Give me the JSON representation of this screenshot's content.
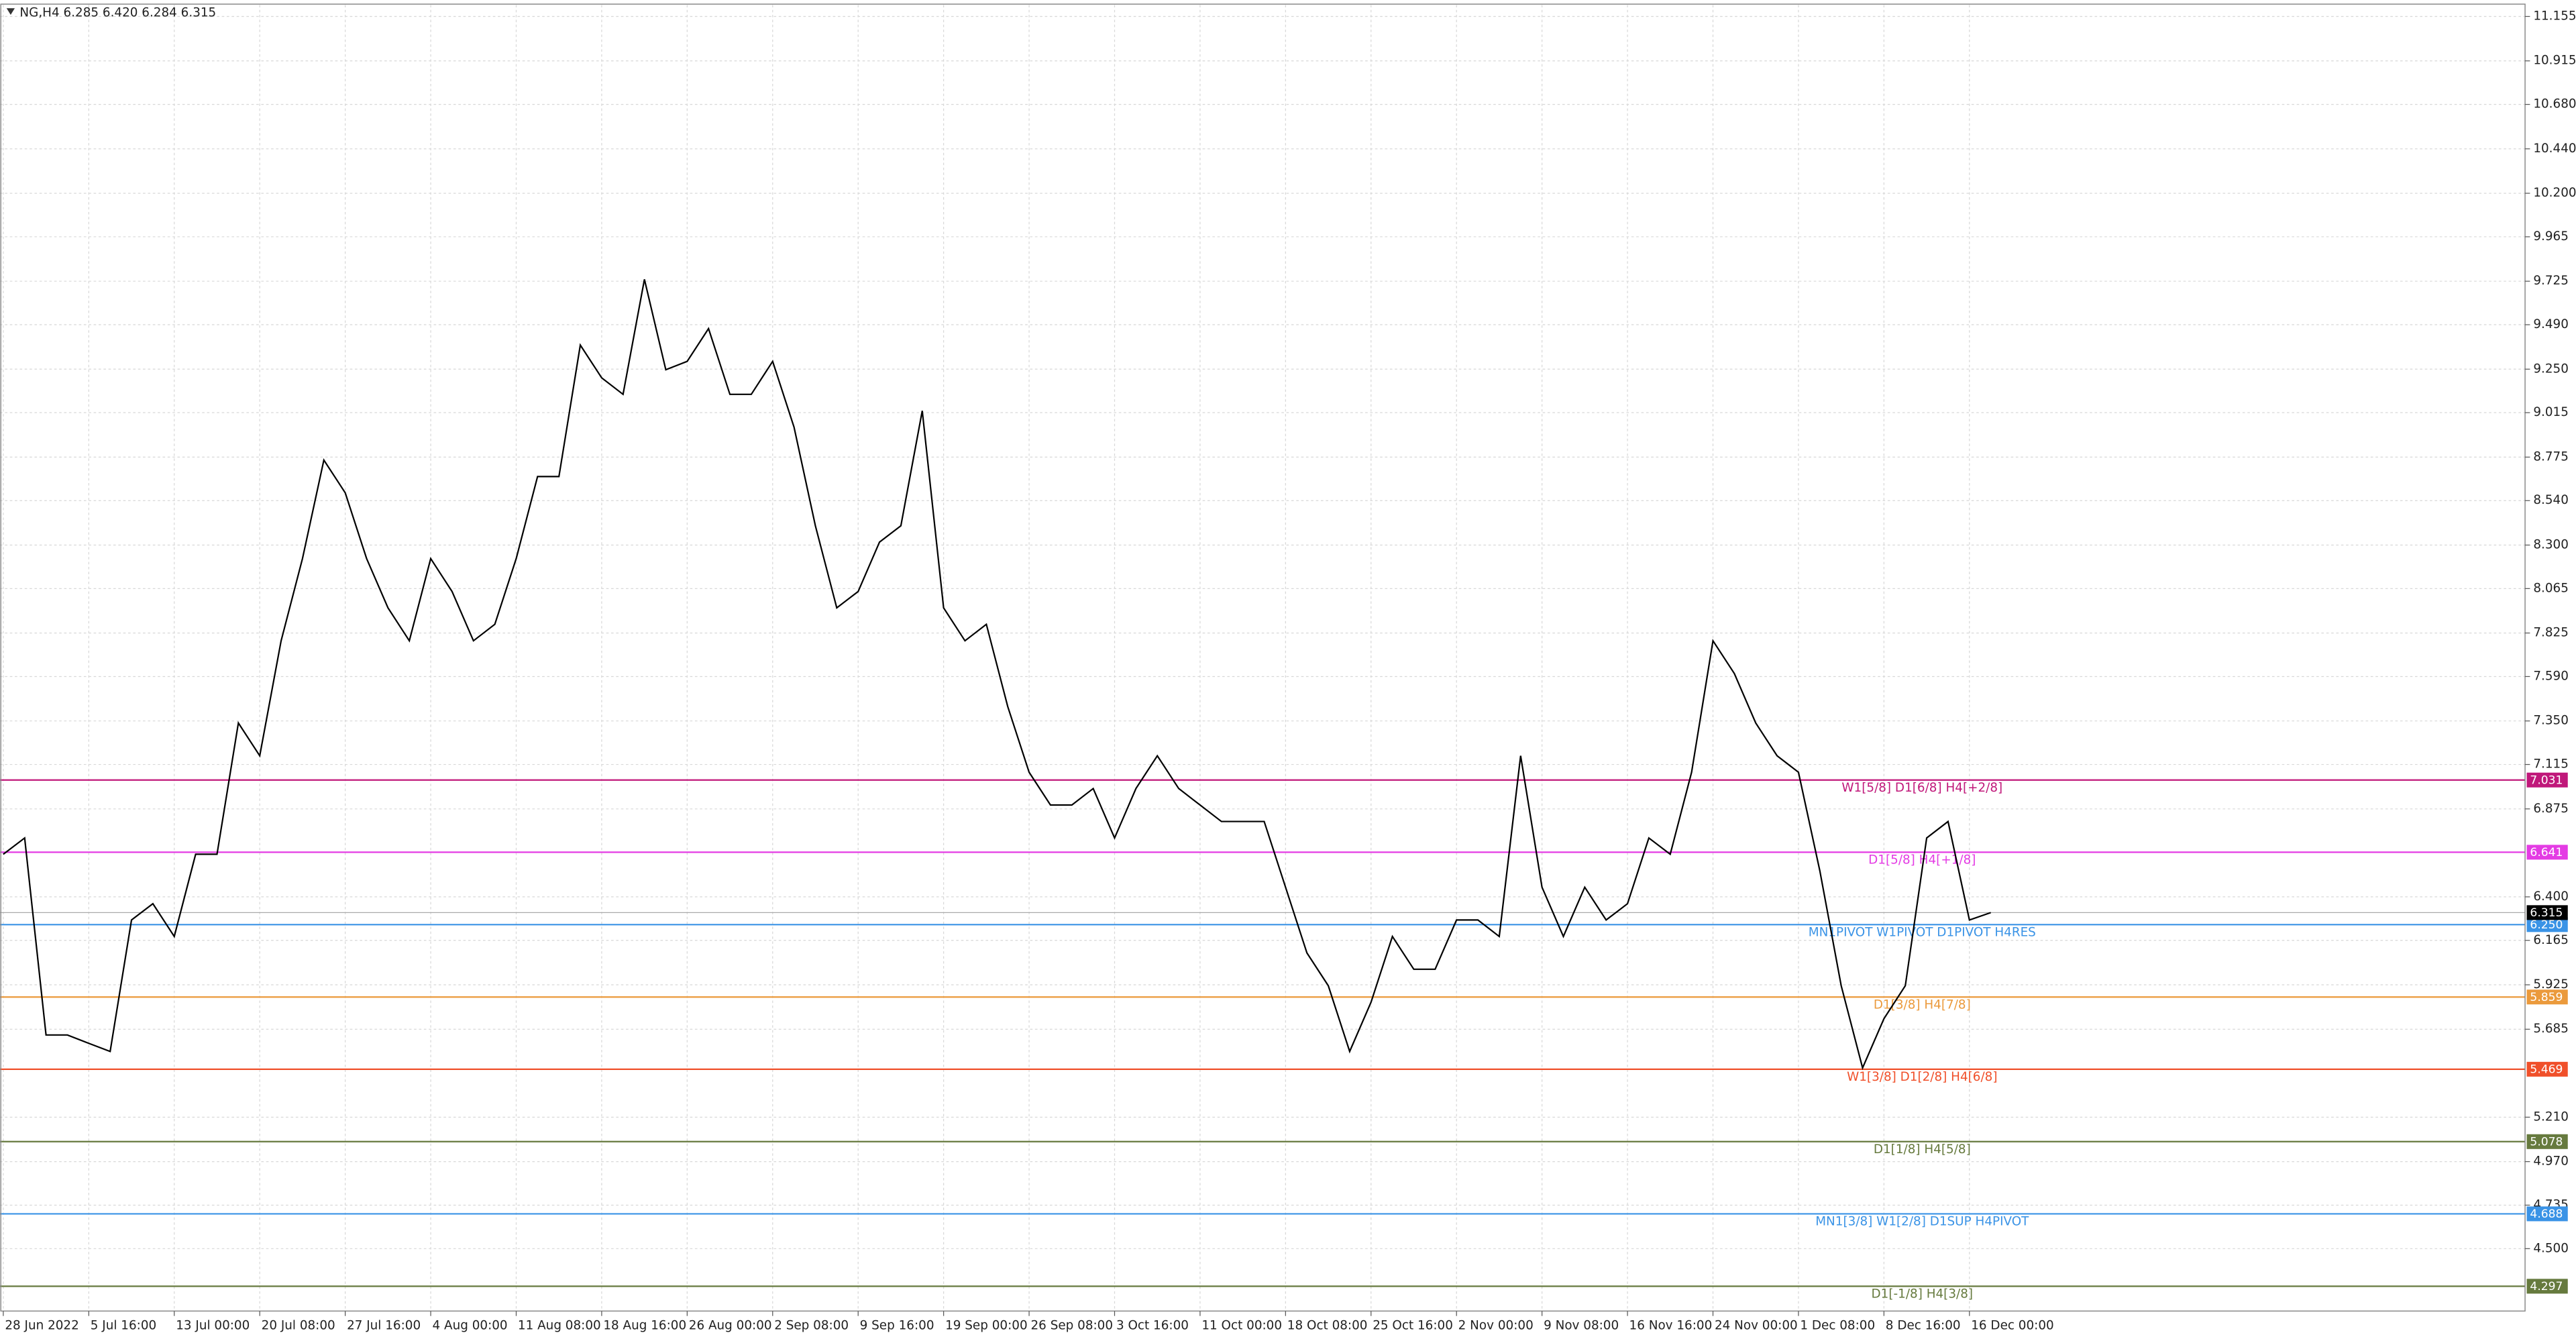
{
  "chart_data": {
    "type": "line",
    "title": "NG,H4  6.285 6.420 6.284 6.315",
    "series": [
      {
        "color": "#000000",
        "values": [
          6.63,
          6.718,
          5.654,
          5.654,
          5.609,
          5.565,
          6.275,
          6.363,
          6.186,
          6.63,
          6.63,
          7.339,
          7.162,
          7.783,
          8.227,
          8.759,
          8.582,
          8.227,
          7.961,
          7.783,
          8.227,
          8.049,
          7.783,
          7.872,
          8.227,
          8.67,
          8.67,
          9.38,
          9.203,
          9.114,
          9.735,
          9.247,
          9.292,
          9.469,
          9.114,
          9.114,
          9.292,
          8.937,
          8.404,
          7.961,
          8.049,
          8.316,
          8.404,
          9.025,
          7.961,
          7.783,
          7.872,
          7.428,
          7.073,
          6.896,
          6.896,
          6.985,
          6.718,
          6.985,
          7.162,
          6.985,
          6.896,
          6.807,
          6.807,
          6.807,
          6.452,
          6.097,
          5.92,
          5.565,
          5.831,
          6.186,
          6.009,
          6.009,
          6.275,
          6.275,
          6.186,
          7.162,
          6.452,
          6.186,
          6.452,
          6.275,
          6.363,
          6.718,
          6.63,
          7.073,
          7.783,
          7.606,
          7.339,
          7.162,
          7.073,
          6.541,
          5.92,
          5.476,
          5.742,
          5.92,
          6.718,
          6.807,
          6.275,
          6.315
        ]
      }
    ],
    "xlim": [
      -0.154,
      118
    ],
    "xticks": [
      {
        "value": 0,
        "label": "28 Jun 2022"
      },
      {
        "value": 4,
        "label": "5 Jul 16:00"
      },
      {
        "value": 8,
        "label": "13 Jul 00:00"
      },
      {
        "value": 12,
        "label": "20 Jul 08:00"
      },
      {
        "value": 16,
        "label": "27 Jul 16:00"
      },
      {
        "value": 20,
        "label": "4 Aug 00:00"
      },
      {
        "value": 24,
        "label": "11 Aug 08:00"
      },
      {
        "value": 28,
        "label": "18 Aug 16:00"
      },
      {
        "value": 32,
        "label": "26 Aug 00:00"
      },
      {
        "value": 36,
        "label": "2 Sep 08:00"
      },
      {
        "value": 40,
        "label": "9 Sep 16:00"
      },
      {
        "value": 44,
        "label": "19 Sep 00:00"
      },
      {
        "value": 48,
        "label": "26 Sep 08:00"
      },
      {
        "value": 52,
        "label": "3 Oct 16:00"
      },
      {
        "value": 56,
        "label": "11 Oct 00:00"
      },
      {
        "value": 60,
        "label": "18 Oct 08:00"
      },
      {
        "value": 64,
        "label": "25 Oct 16:00"
      },
      {
        "value": 68,
        "label": "2 Nov 00:00"
      },
      {
        "value": 72,
        "label": "9 Nov 08:00"
      },
      {
        "value": 76,
        "label": "16 Nov 16:00"
      },
      {
        "value": 80,
        "label": "24 Nov 00:00"
      },
      {
        "value": 84,
        "label": "1 Dec 08:00"
      },
      {
        "value": 88,
        "label": "8 Dec 16:00"
      },
      {
        "value": 92,
        "label": "16 Dec 00:00"
      }
    ],
    "ylim": [
      4.163,
      11.217
    ],
    "yticks": [
      11.155,
      10.915,
      {
        "value": 10.68,
        "label": "10.680"
      },
      {
        "value": 10.44,
        "label": "10.440"
      },
      {
        "value": 10.2,
        "label": "10.200"
      },
      9.965,
      9.725,
      {
        "value": 9.49,
        "label": "9.490"
      },
      {
        "value": 9.25,
        "label": "9.250"
      },
      9.015,
      8.775,
      {
        "value": 8.54,
        "label": "8.540"
      },
      {
        "value": 8.3,
        "label": "8.300"
      },
      8.065,
      7.825,
      {
        "value": 7.59,
        "label": "7.590"
      },
      {
        "value": 7.35,
        "label": "7.350"
      },
      7.115,
      6.875,
      {
        "value": 6.4,
        "label": "6.400"
      },
      6.165,
      5.925,
      5.685,
      {
        "value": 5.21,
        "label": "5.210"
      },
      {
        "value": 4.97,
        "label": "4.970"
      },
      4.735,
      {
        "value": 4.5,
        "label": "4.500"
      }
    ],
    "grid": true,
    "last_price": 6.315,
    "levels": [
      {
        "value": 7.031,
        "label": "W1[5/8] D1[6/8] H4[+2/8]",
        "color": "#c0187a"
      },
      {
        "value": 6.641,
        "label": "D1[5/8] H4[+1/8]",
        "color": "#e43be4"
      },
      {
        "value": 6.25,
        "value_label": "6.250",
        "label": "MN1PIVOT W1PIVOT D1PIVOT H4RES",
        "color": "#3a93e6"
      },
      {
        "value": 5.859,
        "label": "D1[3/8] H4[7/8]",
        "color": "#eb9a3c"
      },
      {
        "value": 5.469,
        "label": "W1[3/8] D1[2/8] H4[6/8]",
        "color": "#f0502a"
      },
      {
        "value": 5.078,
        "label": "D1[1/8] H4[5/8]",
        "color": "#667a3e"
      },
      {
        "value": 4.688,
        "label": "MN1[3/8] W1[2/8] D1SUP H4PIVOT",
        "color": "#3a93e6"
      },
      {
        "value": 4.297,
        "label": "D1[-1/8] H4[3/8]",
        "color": "#667a3e"
      }
    ]
  }
}
